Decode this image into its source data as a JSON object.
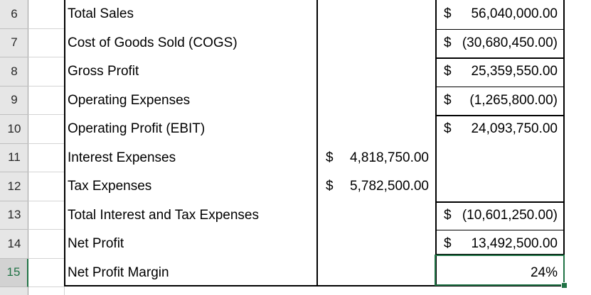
{
  "rows": [
    {
      "num": "6",
      "label": "Total Sales",
      "c": null,
      "d": {
        "cur": "$",
        "amt": "56,040,000.00"
      }
    },
    {
      "num": "7",
      "label": "Cost of Goods Sold (COGS)",
      "c": null,
      "d": {
        "cur": "$",
        "amt": "(30,680,450.00)"
      }
    },
    {
      "num": "8",
      "label": "Gross Profit",
      "c": null,
      "d": {
        "cur": "$",
        "amt": "25,359,550.00"
      }
    },
    {
      "num": "9",
      "label": "Operating Expenses",
      "c": null,
      "d": {
        "cur": "$",
        "amt": "(1,265,800.00)"
      }
    },
    {
      "num": "10",
      "label": "Operating Profit (EBIT)",
      "c": null,
      "d": {
        "cur": "$",
        "amt": "24,093,750.00"
      }
    },
    {
      "num": "11",
      "label": "Interest Expenses",
      "c": {
        "cur": "$",
        "amt": "4,818,750.00"
      },
      "d": null
    },
    {
      "num": "12",
      "label": "Tax Expenses",
      "c": {
        "cur": "$",
        "amt": "5,782,500.00"
      },
      "d": null
    },
    {
      "num": "13",
      "label": "Total Interest and Tax Expenses",
      "c": null,
      "d": {
        "cur": "$",
        "amt": "(10,601,250.00)"
      }
    },
    {
      "num": "14",
      "label": "Net Profit",
      "c": null,
      "d": {
        "cur": "$",
        "amt": "13,492,500.00"
      }
    },
    {
      "num": "15",
      "label": "Net Profit Margin",
      "c": null,
      "d": {
        "cur": "",
        "amt": "24%"
      }
    }
  ],
  "selected_row": "15",
  "colors": {
    "selection": "#217346",
    "header_bg": "#e6e6e6",
    "grid": "#d4d4d4"
  }
}
